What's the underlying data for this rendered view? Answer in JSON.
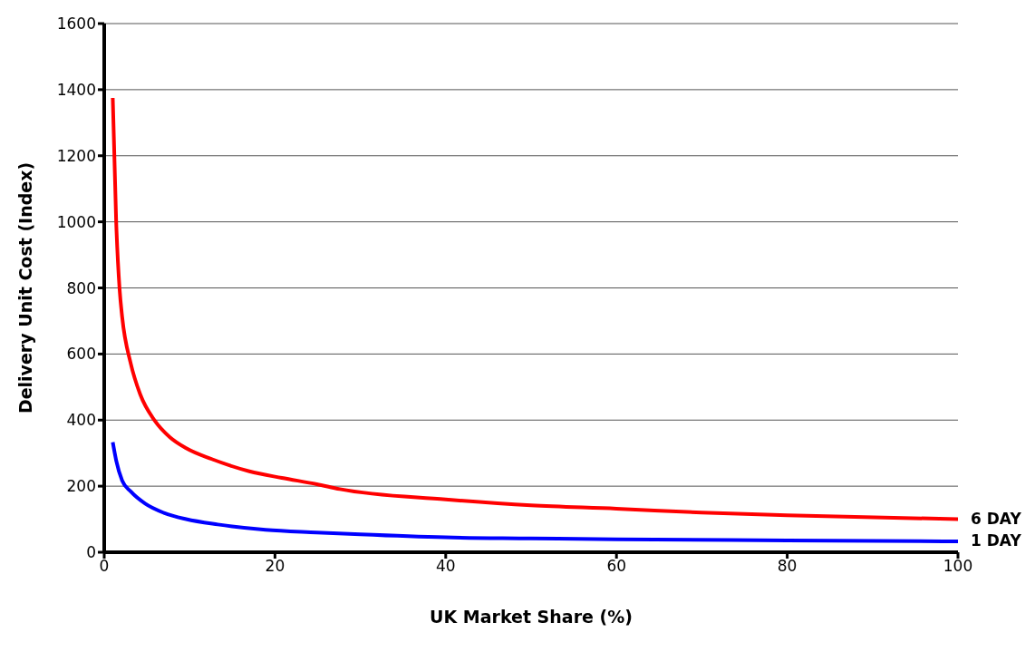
{
  "chart_data": {
    "type": "line",
    "xlabel": "UK Market Share (%)",
    "ylabel": "Delivery Unit Cost (Index)",
    "xlim": [
      0,
      100
    ],
    "xticks": [
      0,
      20,
      40,
      60,
      80,
      100
    ],
    "ylim": [
      0,
      1600
    ],
    "yticks": [
      0,
      200,
      400,
      600,
      800,
      1000,
      1200,
      1400,
      1600
    ],
    "grid": "y",
    "legend": false,
    "marker": "none",
    "line_style": "solid",
    "series": [
      {
        "name": "6 DAY",
        "color": "#ff0000",
        "x": [
          1,
          1.4,
          1.8,
          2.1,
          3.1,
          4.2,
          5.9,
          7.7,
          9.6,
          12.6,
          17,
          20.8,
          24.9,
          27.6,
          40,
          50,
          60,
          70,
          80,
          100
        ],
        "values": [
          1375,
          1000,
          796,
          712,
          572,
          479,
          399,
          348,
          315,
          282,
          245,
          225,
          206,
          191,
          160,
          142,
          132,
          120,
          112,
          100
        ]
      },
      {
        "name": "1 DAY",
        "color": "#0000ff",
        "x": [
          1,
          1.4,
          2.1,
          3.1,
          4.8,
          7,
          9.6,
          13.3,
          18.9,
          24.9,
          30,
          40,
          50,
          60,
          80,
          100
        ],
        "values": [
          333,
          278,
          217,
          184,
          147,
          119,
          100,
          84,
          68,
          60,
          54,
          45,
          42,
          39,
          36,
          33
        ]
      }
    ]
  }
}
